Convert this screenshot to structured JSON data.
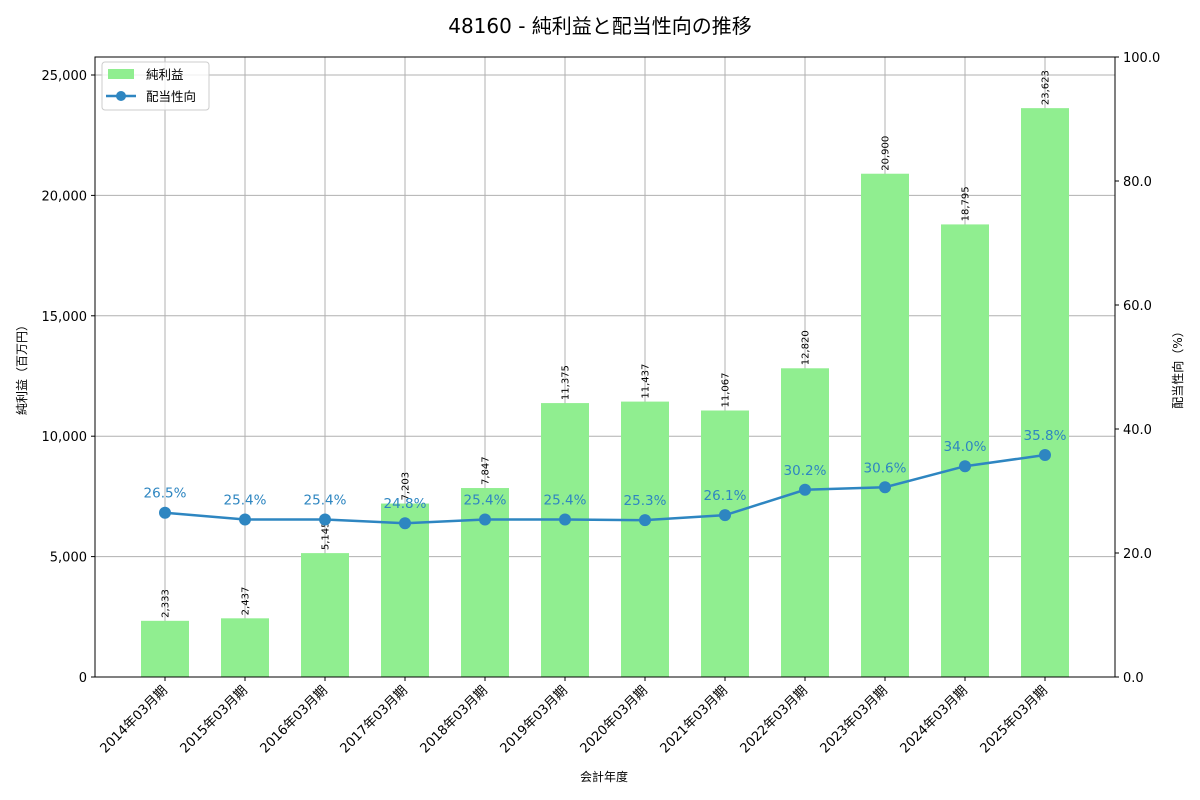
{
  "chart_data": {
    "type": "bar+line",
    "title": "48160 - 純利益と配当性向の推移",
    "xlabel": "会計年度",
    "ylabel_left": "純利益（百万円）",
    "ylabel_right": "配当性向（%）",
    "categories": [
      "2014年03月期",
      "2015年03月期",
      "2016年03月期",
      "2017年03月期",
      "2018年03月期",
      "2019年03月期",
      "2020年03月期",
      "2021年03月期",
      "2022年03月期",
      "2023年03月期",
      "2024年03月期",
      "2025年03月期"
    ],
    "series": [
      {
        "name": "純利益",
        "type": "bar",
        "axis": "left",
        "color": "#90ee90",
        "values": [
          2333,
          2437,
          5145,
          7203,
          7847,
          11375,
          11437,
          11067,
          12820,
          20900,
          18795,
          23623
        ],
        "labels": [
          "2,333",
          "2,437",
          "5,145",
          "7,203",
          "7,847",
          "11,375",
          "11,437",
          "11,067",
          "12,820",
          "20,900",
          "18,795",
          "23,623"
        ]
      },
      {
        "name": "配当性向",
        "type": "line",
        "axis": "right",
        "color": "#2e86c1",
        "values": [
          26.5,
          25.4,
          25.4,
          24.8,
          25.4,
          25.4,
          25.3,
          26.1,
          30.2,
          30.6,
          34.0,
          35.8
        ],
        "labels": [
          "26.5%",
          "25.4%",
          "25.4%",
          "24.8%",
          "25.4%",
          "25.4%",
          "25.3%",
          "26.1%",
          "30.2%",
          "30.6%",
          "34.0%",
          "35.8%"
        ]
      }
    ],
    "ylim_left": [
      0,
      25747
    ],
    "ylim_right": [
      0,
      100
    ],
    "yticks_left": [
      {
        "v": 0,
        "label": "0"
      },
      {
        "v": 5000,
        "label": "5,000"
      },
      {
        "v": 10000,
        "label": "10,000"
      },
      {
        "v": 15000,
        "label": "15,000"
      },
      {
        "v": 20000,
        "label": "20,000"
      },
      {
        "v": 25000,
        "label": "25,000"
      }
    ],
    "yticks_right": [
      {
        "v": 0,
        "label": "0.0"
      },
      {
        "v": 20,
        "label": "20.0"
      },
      {
        "v": 40,
        "label": "40.0"
      },
      {
        "v": 60,
        "label": "60.0"
      },
      {
        "v": 80,
        "label": "80.0"
      },
      {
        "v": 100,
        "label": "100.0"
      }
    ],
    "grid": true,
    "legend_position": "upper left",
    "legend": [
      {
        "label": "純利益",
        "kind": "bar",
        "color": "#90ee90"
      },
      {
        "label": "配当性向",
        "kind": "line",
        "color": "#2e86c1"
      }
    ]
  }
}
